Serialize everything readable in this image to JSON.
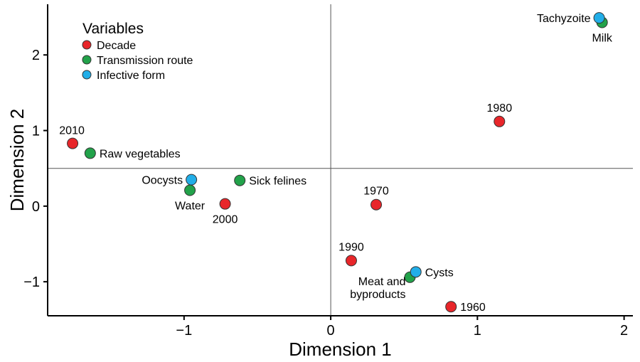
{
  "chart_data": {
    "type": "scatter",
    "xlabel": "Dimension 1",
    "ylabel": "Dimension 2",
    "xlim": [
      -1.93,
      2.06
    ],
    "ylim": [
      -1.45,
      2.67
    ],
    "x_ticks": [
      -1,
      0,
      1,
      2
    ],
    "x_tick_labels": [
      "−1",
      "0",
      "1",
      "2"
    ],
    "y_ticks": [
      -1,
      0,
      1,
      2
    ],
    "y_tick_labels": [
      "−1",
      "0",
      "1",
      "2"
    ],
    "reference_lines": {
      "x": 0,
      "y": 0.5
    },
    "legend": {
      "title": "Variables",
      "position": "top-left",
      "entries": [
        {
          "name": "Decade",
          "color": "#e8262a"
        },
        {
          "name": "Transmission route",
          "color": "#22a24a"
        },
        {
          "name": "Infective form",
          "color": "#22aee8"
        }
      ]
    },
    "series": [
      {
        "name": "Decade",
        "color": "#e8262a",
        "points": [
          {
            "label": "2010",
            "x": -1.76,
            "y": 0.83,
            "label_pos": "above-left"
          },
          {
            "label": "2000",
            "x": -0.72,
            "y": 0.03,
            "label_pos": "below"
          },
          {
            "label": "1980",
            "x": 1.15,
            "y": 1.12,
            "label_pos": "above"
          },
          {
            "label": "1970",
            "x": 0.31,
            "y": 0.02,
            "label_pos": "above"
          },
          {
            "label": "1990",
            "x": 0.14,
            "y": -0.72,
            "label_pos": "above"
          },
          {
            "label": "1960",
            "x": 0.82,
            "y": -1.33,
            "label_pos": "right"
          }
        ]
      },
      {
        "name": "Transmission route",
        "color": "#22a24a",
        "points": [
          {
            "label": "Raw vegetables",
            "x": -1.64,
            "y": 0.7,
            "label_pos": "right"
          },
          {
            "label": "Water",
            "x": -0.96,
            "y": 0.21,
            "label_pos": "below"
          },
          {
            "label": "Sick felines",
            "x": -0.62,
            "y": 0.34,
            "label_pos": "right"
          },
          {
            "label": "Milk",
            "x": 1.85,
            "y": 2.43,
            "label_pos": "below"
          },
          {
            "label": "Meat and byproducts",
            "x": 0.54,
            "y": -0.94,
            "label_pos": "below-left"
          }
        ]
      },
      {
        "name": "Infective form",
        "color": "#22aee8",
        "points": [
          {
            "label": "Oocysts",
            "x": -0.95,
            "y": 0.35,
            "label_pos": "left"
          },
          {
            "label": "Tachyzoite",
            "x": 1.83,
            "y": 2.49,
            "label_pos": "left"
          },
          {
            "label": "Cysts",
            "x": 0.58,
            "y": -0.87,
            "label_pos": "right"
          }
        ]
      }
    ]
  }
}
